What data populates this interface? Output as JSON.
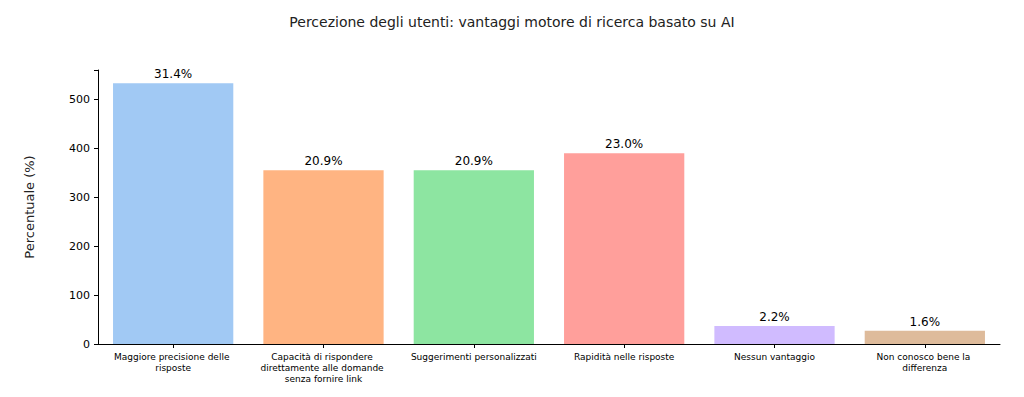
{
  "chart_data": {
    "type": "bar",
    "title": "Percezione degli utenti: vantaggi motore di ricerca basato su AI",
    "ylabel": "Percentuale (%)",
    "categories": [
      "Maggiore precisione delle risposte",
      "Capacità di rispondere direttamente alle domande senza fornire link",
      "Suggerimenti personalizzati",
      "Rapidità nelle risposte",
      "Nessun vantaggio",
      "Non conosco bene la differenza"
    ],
    "values": [
      533,
      355,
      355,
      390,
      37,
      27
    ],
    "value_labels": [
      "31.4%",
      "20.9%",
      "20.9%",
      "23.0%",
      "2.2%",
      "1.6%"
    ],
    "colors": [
      "#a1c9f4",
      "#ffb482",
      "#8de5a1",
      "#ff9f9b",
      "#d0bbff",
      "#debb9b"
    ],
    "ylim": [
      0,
      560
    ],
    "yticks": [
      0,
      100,
      200,
      300,
      400,
      500
    ],
    "grid": false,
    "data_labels": true
  }
}
